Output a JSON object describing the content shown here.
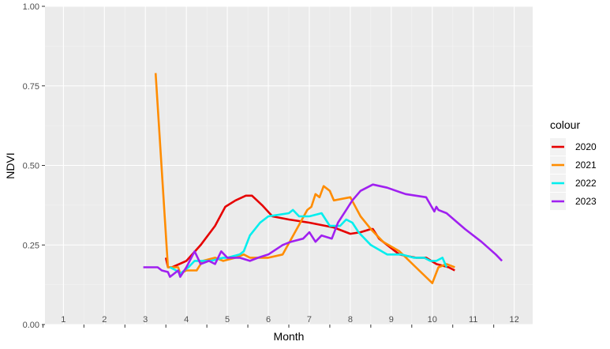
{
  "chart_data": {
    "type": "line",
    "title": "",
    "xlabel": "Month",
    "ylabel": "NDVI",
    "x_categories": [
      "1",
      "2",
      "3",
      "4",
      "5",
      "6",
      "7",
      "8",
      "9",
      "10",
      "11",
      "12"
    ],
    "xlim": [
      0.55,
      12.45
    ],
    "ylim": [
      0,
      1
    ],
    "y_ticks": [
      0,
      0.25,
      0.5,
      0.75,
      1
    ],
    "y_tick_labels": [
      "0.00",
      "0.25",
      "0.50",
      "0.75",
      "1.00"
    ],
    "grid": true,
    "legend_title": "colour",
    "legend_position": "right",
    "series": [
      {
        "name": "2020",
        "color": "#e60000",
        "points": [
          [
            3.5,
            0.21
          ],
          [
            3.55,
            0.18
          ],
          [
            3.65,
            0.18
          ],
          [
            4.0,
            0.2
          ],
          [
            4.35,
            0.25
          ],
          [
            4.7,
            0.31
          ],
          [
            4.95,
            0.37
          ],
          [
            5.2,
            0.39
          ],
          [
            5.45,
            0.405
          ],
          [
            5.6,
            0.405
          ],
          [
            5.85,
            0.375
          ],
          [
            6.1,
            0.34
          ],
          [
            6.5,
            0.33
          ],
          [
            7.0,
            0.32
          ],
          [
            7.6,
            0.305
          ],
          [
            7.9,
            0.29
          ],
          [
            8.0,
            0.285
          ],
          [
            8.25,
            0.29
          ],
          [
            8.5,
            0.3
          ],
          [
            8.55,
            0.3
          ],
          [
            8.7,
            0.27
          ],
          [
            9.0,
            0.24
          ],
          [
            9.2,
            0.22
          ],
          [
            9.6,
            0.21
          ],
          [
            9.85,
            0.21
          ],
          [
            10.1,
            0.19
          ],
          [
            10.4,
            0.18
          ],
          [
            10.55,
            0.17
          ]
        ]
      },
      {
        "name": "2021",
        "color": "#ff8c00",
        "points": [
          [
            3.25,
            0.79
          ],
          [
            3.55,
            0.18
          ],
          [
            3.8,
            0.18
          ],
          [
            3.85,
            0.16
          ],
          [
            4.0,
            0.17
          ],
          [
            4.25,
            0.17
          ],
          [
            4.4,
            0.2
          ],
          [
            4.7,
            0.21
          ],
          [
            4.9,
            0.2
          ],
          [
            5.2,
            0.21
          ],
          [
            5.4,
            0.22
          ],
          [
            5.55,
            0.21
          ],
          [
            6.0,
            0.21
          ],
          [
            6.35,
            0.22
          ],
          [
            6.65,
            0.29
          ],
          [
            6.95,
            0.36
          ],
          [
            7.05,
            0.37
          ],
          [
            7.15,
            0.41
          ],
          [
            7.25,
            0.4
          ],
          [
            7.35,
            0.435
          ],
          [
            7.5,
            0.42
          ],
          [
            7.6,
            0.39
          ],
          [
            8.0,
            0.4
          ],
          [
            8.25,
            0.34
          ],
          [
            8.5,
            0.3
          ],
          [
            8.8,
            0.26
          ],
          [
            9.2,
            0.23
          ],
          [
            9.6,
            0.18
          ],
          [
            10.0,
            0.13
          ],
          [
            10.15,
            0.18
          ],
          [
            10.35,
            0.19
          ],
          [
            10.55,
            0.18
          ]
        ]
      },
      {
        "name": "2022",
        "color": "#00eeee",
        "points": [
          [
            3.6,
            0.18
          ],
          [
            3.75,
            0.17
          ],
          [
            3.85,
            0.16
          ],
          [
            4.05,
            0.18
          ],
          [
            4.2,
            0.2
          ],
          [
            4.4,
            0.2
          ],
          [
            4.6,
            0.2
          ],
          [
            4.9,
            0.21
          ],
          [
            5.0,
            0.21
          ],
          [
            5.3,
            0.22
          ],
          [
            5.4,
            0.23
          ],
          [
            5.55,
            0.28
          ],
          [
            5.8,
            0.32
          ],
          [
            6.0,
            0.34
          ],
          [
            6.5,
            0.35
          ],
          [
            6.6,
            0.36
          ],
          [
            6.75,
            0.34
          ],
          [
            7.0,
            0.34
          ],
          [
            7.3,
            0.35
          ],
          [
            7.5,
            0.31
          ],
          [
            7.75,
            0.31
          ],
          [
            7.9,
            0.33
          ],
          [
            8.05,
            0.32
          ],
          [
            8.2,
            0.29
          ],
          [
            8.5,
            0.25
          ],
          [
            8.9,
            0.22
          ],
          [
            9.25,
            0.22
          ],
          [
            9.55,
            0.21
          ],
          [
            9.8,
            0.21
          ],
          [
            9.95,
            0.2
          ],
          [
            10.1,
            0.2
          ],
          [
            10.25,
            0.21
          ],
          [
            10.35,
            0.18
          ]
        ]
      },
      {
        "name": "2023",
        "color": "#a020f0",
        "points": [
          [
            2.95,
            0.18
          ],
          [
            3.3,
            0.18
          ],
          [
            3.4,
            0.17
          ],
          [
            3.55,
            0.165
          ],
          [
            3.6,
            0.15
          ],
          [
            3.8,
            0.17
          ],
          [
            3.85,
            0.15
          ],
          [
            4.0,
            0.18
          ],
          [
            4.2,
            0.23
          ],
          [
            4.35,
            0.19
          ],
          [
            4.55,
            0.2
          ],
          [
            4.7,
            0.19
          ],
          [
            4.85,
            0.23
          ],
          [
            5.0,
            0.21
          ],
          [
            5.3,
            0.21
          ],
          [
            5.55,
            0.2
          ],
          [
            5.75,
            0.21
          ],
          [
            6.0,
            0.22
          ],
          [
            6.35,
            0.25
          ],
          [
            6.55,
            0.26
          ],
          [
            6.85,
            0.27
          ],
          [
            7.0,
            0.29
          ],
          [
            7.15,
            0.26
          ],
          [
            7.3,
            0.28
          ],
          [
            7.55,
            0.27
          ],
          [
            7.7,
            0.32
          ],
          [
            7.9,
            0.36
          ],
          [
            8.05,
            0.39
          ],
          [
            8.25,
            0.42
          ],
          [
            8.55,
            0.44
          ],
          [
            8.9,
            0.43
          ],
          [
            9.35,
            0.41
          ],
          [
            9.85,
            0.4
          ],
          [
            10.05,
            0.355
          ],
          [
            10.1,
            0.37
          ],
          [
            10.15,
            0.36
          ],
          [
            10.35,
            0.35
          ],
          [
            10.8,
            0.3
          ],
          [
            11.2,
            0.26
          ],
          [
            11.55,
            0.22
          ],
          [
            11.7,
            0.2
          ]
        ]
      }
    ]
  }
}
